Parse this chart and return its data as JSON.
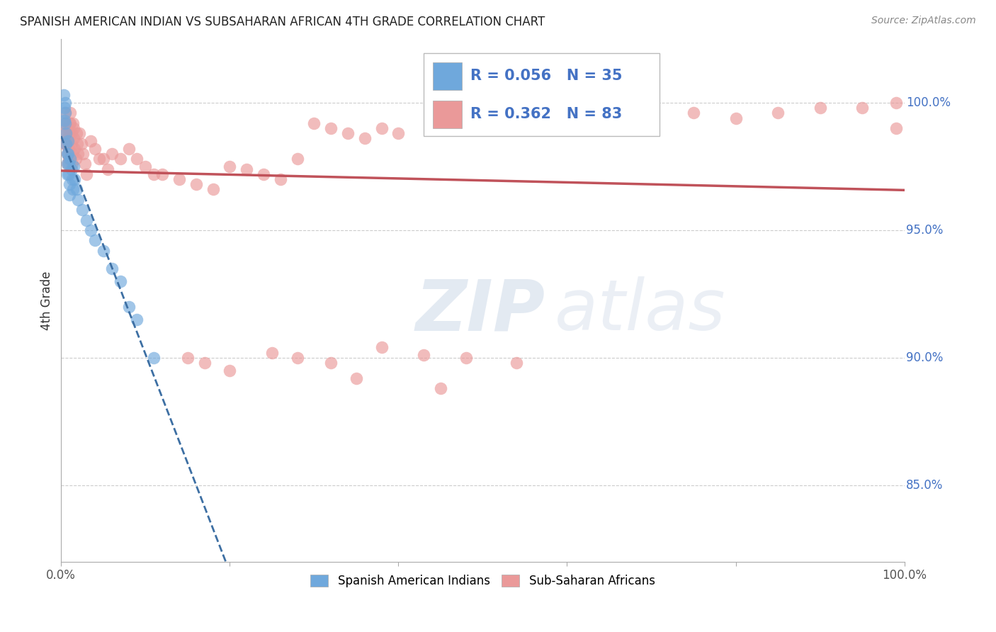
{
  "title": "SPANISH AMERICAN INDIAN VS SUBSAHARAN AFRICAN 4TH GRADE CORRELATION CHART",
  "source": "Source: ZipAtlas.com",
  "ylabel": "4th Grade",
  "watermark_zip": "ZIP",
  "watermark_atlas": "atlas",
  "legend_r1": "R = 0.056",
  "legend_n1": "N = 35",
  "legend_r2": "R = 0.362",
  "legend_n2": "N = 83",
  "legend_label1": "Spanish American Indians",
  "legend_label2": "Sub-Saharan Africans",
  "blue_color": "#6fa8dc",
  "pink_color": "#ea9999",
  "blue_line_color": "#3d6fa3",
  "pink_line_color": "#c0525a",
  "xlim": [
    0.0,
    1.0
  ],
  "ylim": [
    0.82,
    1.025
  ],
  "ytick_positions": [
    1.0,
    0.95,
    0.9,
    0.85
  ],
  "ytick_labels": [
    "100.0%",
    "95.0%",
    "90.0%",
    "85.0%"
  ],
  "xtick_positions": [
    0.0,
    0.2,
    0.4,
    0.6,
    0.8,
    1.0
  ],
  "xtick_labels_show": [
    "0.0%",
    "",
    "",
    "",
    "",
    "100.0%"
  ],
  "blue_x": [
    0.003,
    0.004,
    0.004,
    0.005,
    0.005,
    0.005,
    0.006,
    0.006,
    0.007,
    0.007,
    0.007,
    0.008,
    0.008,
    0.009,
    0.009,
    0.01,
    0.01,
    0.011,
    0.012,
    0.013,
    0.014,
    0.015,
    0.016,
    0.018,
    0.02,
    0.025,
    0.03,
    0.035,
    0.04,
    0.05,
    0.06,
    0.07,
    0.08,
    0.09,
    0.11
  ],
  "blue_y": [
    1.003,
    0.998,
    0.993,
    1.0,
    0.996,
    0.992,
    0.988,
    0.984,
    0.98,
    0.976,
    0.972,
    0.985,
    0.98,
    0.976,
    0.972,
    0.968,
    0.964,
    0.978,
    0.974,
    0.97,
    0.966,
    0.975,
    0.97,
    0.966,
    0.962,
    0.958,
    0.954,
    0.95,
    0.946,
    0.942,
    0.935,
    0.93,
    0.92,
    0.915,
    0.9
  ],
  "pink_x": [
    0.003,
    0.004,
    0.004,
    0.005,
    0.005,
    0.006,
    0.006,
    0.007,
    0.007,
    0.008,
    0.008,
    0.009,
    0.009,
    0.01,
    0.01,
    0.011,
    0.011,
    0.012,
    0.012,
    0.013,
    0.013,
    0.014,
    0.015,
    0.015,
    0.016,
    0.017,
    0.018,
    0.019,
    0.02,
    0.022,
    0.024,
    0.026,
    0.028,
    0.03,
    0.035,
    0.04,
    0.045,
    0.05,
    0.055,
    0.06,
    0.07,
    0.08,
    0.09,
    0.1,
    0.11,
    0.12,
    0.14,
    0.16,
    0.18,
    0.2,
    0.22,
    0.24,
    0.26,
    0.28,
    0.3,
    0.32,
    0.34,
    0.36,
    0.38,
    0.4,
    0.5,
    0.6,
    0.65,
    0.7,
    0.75,
    0.8,
    0.85,
    0.9,
    0.95,
    0.99,
    0.15,
    0.17,
    0.2,
    0.25,
    0.28,
    0.32,
    0.38,
    0.43,
    0.48,
    0.54,
    0.35,
    0.45,
    0.99
  ],
  "pink_y": [
    0.992,
    0.988,
    0.984,
    0.996,
    0.992,
    0.988,
    0.984,
    0.98,
    0.976,
    0.99,
    0.986,
    0.982,
    0.978,
    0.992,
    0.988,
    0.996,
    0.992,
    0.988,
    0.984,
    0.98,
    0.976,
    0.992,
    0.99,
    0.986,
    0.982,
    0.978,
    0.988,
    0.984,
    0.98,
    0.988,
    0.984,
    0.98,
    0.976,
    0.972,
    0.985,
    0.982,
    0.978,
    0.978,
    0.974,
    0.98,
    0.978,
    0.982,
    0.978,
    0.975,
    0.972,
    0.972,
    0.97,
    0.968,
    0.966,
    0.975,
    0.974,
    0.972,
    0.97,
    0.978,
    0.992,
    0.99,
    0.988,
    0.986,
    0.99,
    0.988,
    0.992,
    0.994,
    0.992,
    0.994,
    0.996,
    0.994,
    0.996,
    0.998,
    0.998,
    1.0,
    0.9,
    0.898,
    0.895,
    0.902,
    0.9,
    0.898,
    0.904,
    0.901,
    0.9,
    0.898,
    0.892,
    0.888,
    0.99
  ]
}
